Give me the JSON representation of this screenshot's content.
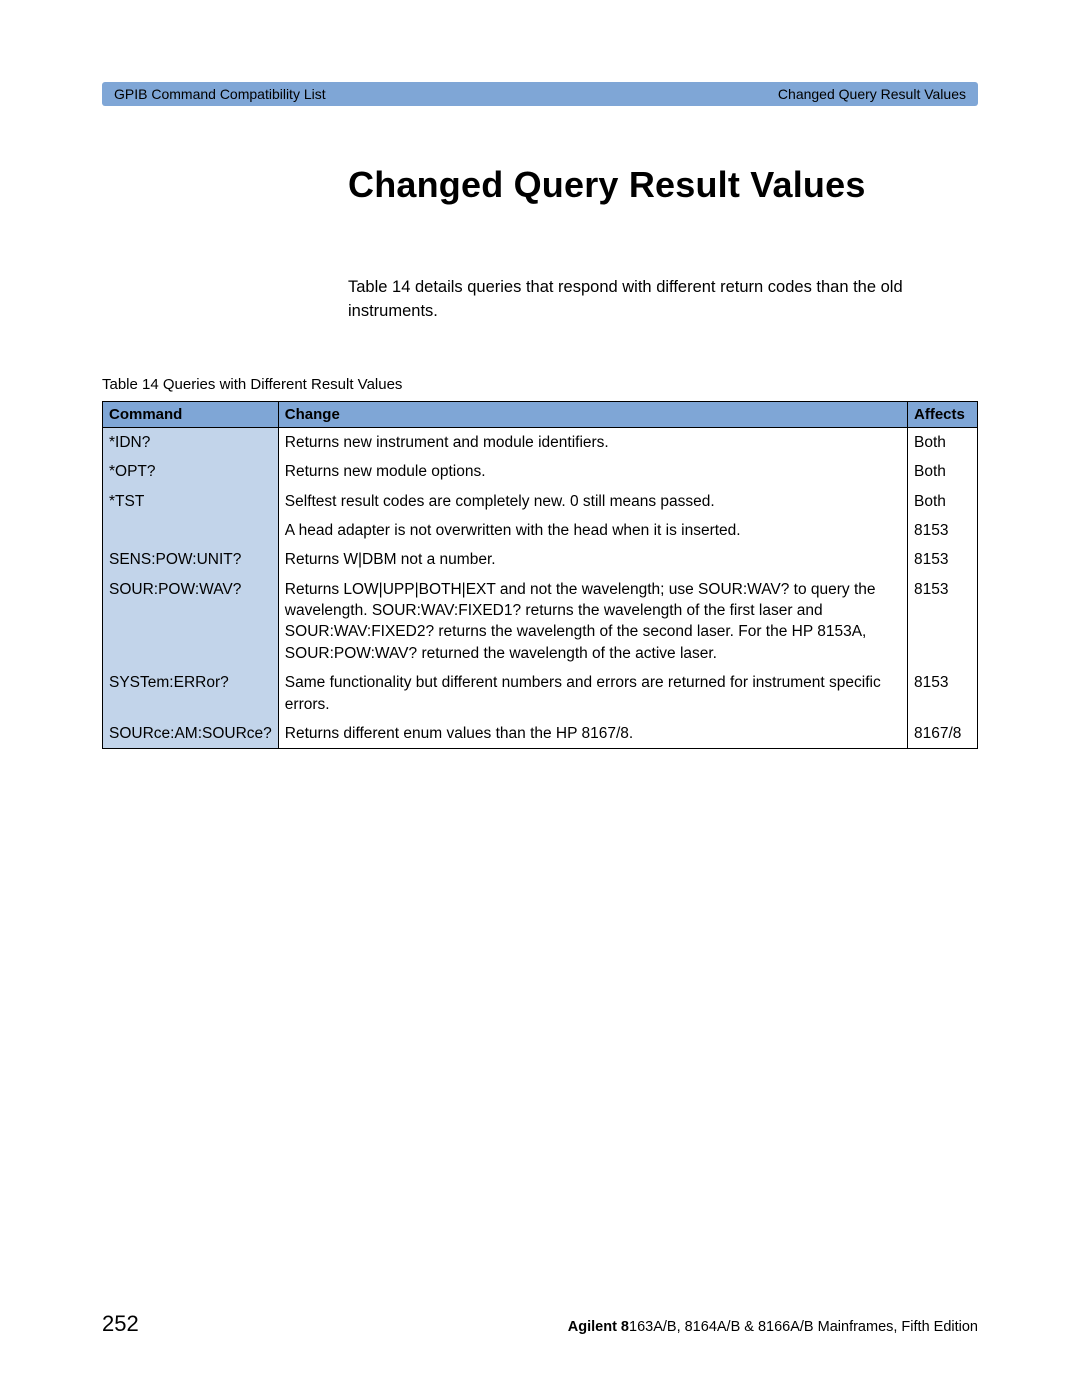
{
  "header": {
    "left": "GPIB Command Compatibility List",
    "right": "Changed Query Result Values"
  },
  "heading": "Changed Query Result Values",
  "intro": "Table 14  details queries that respond with different return codes than the old instruments.",
  "table": {
    "caption": "Table 14 Queries with Different Result Values",
    "columns": {
      "command": "Command",
      "change": "Change",
      "affects": "Affects"
    },
    "rows": [
      {
        "command": "*IDN?",
        "change": "Returns new instrument and module identifiers.",
        "affects": "Both"
      },
      {
        "command": "*OPT?",
        "change": "Returns new module options.",
        "affects": "Both"
      },
      {
        "command": "*TST",
        "change": "Selftest result codes are completely new. 0 still means passed.",
        "affects": "Both"
      },
      {
        "command": "",
        "change": "A head adapter is not overwritten with the head when it is inserted.",
        "affects": "8153"
      },
      {
        "command": "SENS:POW:UNIT?",
        "change": "Returns W|DBM not a number.",
        "affects": "8153"
      },
      {
        "command": "SOUR:POW:WAV?",
        "change": "Returns LOW|UPP|BOTH|EXT and not the wavelength; use SOUR:WAV? to query the wavelength. SOUR:WAV:FIXED1? returns the wavelength of the first laser and SOUR:WAV:FIXED2? returns the wavelength of the second laser. For the HP 8153A, SOUR:POW:WAV? returned the wavelength of the active laser.",
        "affects": "8153"
      },
      {
        "command": "SYSTem:ERRor?",
        "change": "Same functionality but different numbers and errors are returned for instrument specific errors.",
        "affects": "8153"
      },
      {
        "command": "SOURce:AM:SOURce?",
        "change": "Returns different enum values than the HP 8167/8.",
        "affects": "8167/8"
      }
    ]
  },
  "footer": {
    "page": "252",
    "prefix": "Agilent 8",
    "rest": "163A/B, 8164A/B & 8166A/B Mainframes, Fifth Edition"
  },
  "colors": {
    "header_bar": "#7fa6d6",
    "table_header": "#7fa6d6",
    "command_col": "#c2d4ea",
    "border": "#000000",
    "background": "#ffffff"
  }
}
